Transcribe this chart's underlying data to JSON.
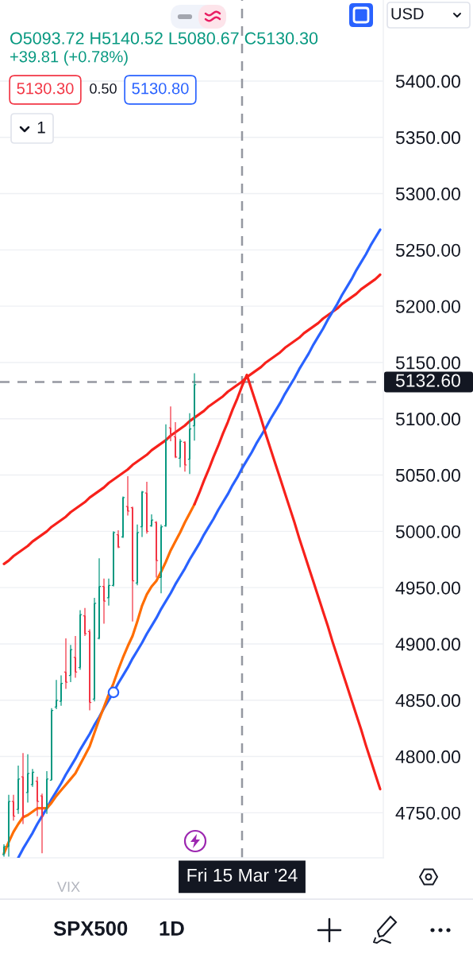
{
  "chart_data": {
    "type": "candlestick",
    "categories": [
      null,
      null,
      null,
      null,
      null,
      null,
      null,
      null,
      null,
      null,
      null,
      null,
      null,
      null,
      null,
      null,
      null,
      null,
      null,
      null,
      null,
      null,
      null,
      null,
      null,
      null,
      null,
      null,
      null,
      null,
      null,
      null,
      null,
      null,
      null,
      null,
      null,
      null,
      null,
      null,
      null,
      null,
      null,
      null,
      null,
      null,
      null,
      null,
      null,
      null,
      "Fri 15 Mar '24",
      null,
      null,
      null,
      null,
      null,
      null,
      null,
      null,
      null,
      null,
      null,
      null,
      null,
      null,
      null,
      null,
      null,
      null,
      null,
      null,
      null,
      null,
      null,
      null,
      null,
      null,
      null,
      null,
      null
    ],
    "ohlc": [
      [
        4713,
        4722,
        4711,
        4720
      ],
      [
        4720,
        4766,
        4711,
        4760
      ],
      [
        4760,
        4766,
        4743,
        4747
      ],
      [
        4753,
        4792,
        4749,
        4780
      ],
      [
        4782,
        4803,
        4740,
        4747
      ],
      [
        4768,
        4802,
        4759,
        4785
      ],
      [
        4775,
        4789,
        4773,
        4786
      ],
      [
        4778,
        4782,
        4747,
        4760
      ],
      [
        4765,
        4767,
        4714,
        4747
      ],
      [
        4754,
        4787,
        4749,
        4780
      ],
      [
        4779,
        4843,
        4779,
        4841
      ],
      [
        4844,
        4868,
        4842,
        4850
      ],
      [
        4849,
        4872,
        4845,
        4865
      ],
      [
        4875,
        4905,
        4860,
        4866
      ],
      [
        4872,
        4899,
        4866,
        4895
      ],
      [
        4888,
        4907,
        4870,
        4875
      ],
      [
        4879,
        4930,
        4877,
        4926
      ],
      [
        4925,
        4932,
        4907,
        4909
      ],
      [
        4911,
        4913,
        4841,
        4848
      ],
      [
        4851,
        4941,
        4849,
        4936
      ],
      [
        4905,
        4976,
        4904,
        4951
      ],
      [
        4951,
        4958,
        4918,
        4938
      ],
      [
        4941,
        4958,
        4934,
        4952
      ],
      [
        4952,
        5000,
        4951,
        4999
      ],
      [
        4997,
        5001,
        4985,
        4986
      ],
      [
        4995,
        5031,
        4994,
        5030
      ],
      [
        5022,
        5049,
        5014,
        5018
      ],
      [
        5021,
        5022,
        4920,
        4956
      ],
      [
        4954,
        5006,
        4952,
        4999
      ],
      [
        5004,
        5036,
        4995,
        5035
      ],
      [
        5034,
        5044,
        4998,
        5000
      ],
      [
        5005,
        5015,
        5004,
        5010
      ],
      [
        5008,
        5009,
        4959,
        4974
      ],
      [
        4959,
        5006,
        4945,
        5004
      ],
      [
        5005,
        5095,
        5004,
        5081
      ],
      [
        5092,
        5111,
        5080,
        5085
      ],
      [
        5084,
        5097,
        5065,
        5066
      ],
      [
        5065,
        5082,
        5057,
        5080
      ],
      [
        5079,
        5080,
        5053,
        5059
      ],
      [
        5064,
        5105,
        5051,
        5091
      ],
      [
        5093.72,
        5140.52,
        5080.67,
        5130.3
      ],
      null,
      null,
      null,
      null,
      null,
      null,
      null,
      null,
      null,
      null,
      null,
      null,
      null,
      null,
      null,
      null,
      null,
      null,
      null,
      null,
      null,
      null,
      null,
      null,
      null,
      null,
      null,
      null,
      null,
      null,
      null,
      null,
      null,
      null,
      null,
      null,
      null,
      null,
      null
    ],
    "colors": [
      "#089981",
      "#089981",
      "#f23645",
      "#089981",
      "#f23645",
      "#089981",
      "#089981",
      "#f23645",
      "#f23645",
      "#089981",
      "#089981",
      "#089981",
      "#089981",
      "#f23645",
      "#089981",
      "#f23645",
      "#089981",
      "#f23645",
      "#f23645",
      "#089981",
      "#089981",
      "#f23645",
      "#089981",
      "#089981",
      "#f23645",
      "#089981",
      "#f23645",
      "#f23645",
      "#089981",
      "#089981",
      "#f23645",
      "#089981",
      "#f23645",
      "#089981",
      "#089981",
      "#f23645",
      "#f23645",
      "#089981",
      "#f23645",
      "#089981",
      "#089981",
      null,
      null,
      null,
      null,
      null,
      null,
      null,
      null,
      null,
      null,
      null,
      null,
      null,
      null,
      null,
      null,
      null,
      null,
      null,
      null,
      null,
      null,
      null,
      null,
      null,
      null,
      null,
      null,
      null,
      null,
      null,
      null,
      null,
      null,
      null,
      null,
      null,
      null,
      null
    ],
    "series": [
      {
        "type": "line",
        "color": "#f7211b",
        "values": [
          4971,
          4974,
          4978,
          4981,
          4984,
          4987,
          4991,
          4994,
          4997,
          5000,
          5004,
          5007,
          5010,
          5013,
          5017,
          5020,
          5023,
          5026,
          5030,
          5033,
          5036,
          5039,
          5043,
          5046,
          5049,
          5052,
          5055,
          5059,
          5062,
          5065,
          5068,
          5072,
          5075,
          5078,
          5081,
          5085,
          5088,
          5091,
          5094,
          5098,
          5101,
          5104,
          5107,
          5111,
          5114,
          5117,
          5120,
          5124,
          5127,
          5130,
          5133,
          5137,
          5140,
          5143,
          5146,
          5150,
          5153,
          5156,
          5159,
          5163,
          5166,
          5169,
          5172,
          5176,
          5179,
          5182,
          5185,
          5189,
          5192,
          5195,
          5198,
          5202,
          5205,
          5208,
          5211,
          5215,
          5218,
          5221,
          5224,
          5228
        ]
      },
      {
        "type": "line",
        "color": "#2962ff",
        "values": [
          null,
          null,
          null,
          4710,
          4718,
          4725,
          4732,
          4740,
          4747,
          4754,
          4762,
          4769,
          4776,
          4784,
          4791,
          4798,
          4806,
          4813,
          4820,
          4828,
          4835,
          4843,
          4850,
          4857,
          4865,
          4872,
          4879,
          4887,
          4894,
          4901,
          4909,
          4916,
          4923,
          4931,
          4938,
          4945,
          4953,
          4960,
          4967,
          4975,
          4982,
          4989,
          4997,
          5004,
          5011,
          5019,
          5026,
          5033,
          5041,
          5048,
          5056,
          5063,
          5070,
          5078,
          5085,
          5092,
          5100,
          5107,
          5114,
          5122,
          5129,
          5136,
          5144,
          5151,
          5158,
          5166,
          5173,
          5180,
          5188,
          5195,
          5202,
          5210,
          5217,
          5224,
          5232,
          5239,
          5246,
          5254,
          5261,
          5268
        ]
      },
      {
        "type": "line",
        "color": "#ff6d00",
        "values": [
          4714,
          4724,
          4733,
          4740,
          4746,
          4748,
          4751,
          4754,
          4754,
          4754,
          4759,
          4765,
          4770,
          4775,
          4780,
          4785,
          4793,
          4801,
          4809,
          4821,
          4833,
          4844,
          4855,
          4865,
          4877,
          4888,
          4898,
          4907,
          4920,
          4934,
          4944,
          4951,
          4956,
          4964,
          4973,
          4983,
          4991,
          4999,
          5008,
          5016,
          5024,
          null,
          null,
          null,
          null,
          null,
          null,
          null,
          null,
          null,
          null,
          null,
          null,
          null,
          null,
          null,
          null,
          null,
          null,
          null,
          null,
          null,
          null,
          null,
          null,
          null,
          null,
          null,
          null,
          null,
          null,
          null,
          null,
          null,
          null,
          null,
          null,
          null,
          null,
          null
        ]
      },
      {
        "type": "line",
        "color": "#f7211b",
        "values": [
          null,
          null,
          null,
          null,
          null,
          null,
          null,
          null,
          null,
          null,
          null,
          null,
          null,
          null,
          null,
          null,
          null,
          null,
          null,
          null,
          null,
          null,
          null,
          null,
          null,
          null,
          null,
          null,
          null,
          null,
          null,
          null,
          null,
          null,
          null,
          null,
          null,
          null,
          null,
          null,
          5024,
          5034,
          5045,
          5055,
          5066,
          5076,
          5087,
          5097,
          5108,
          5118,
          5129,
          5139,
          5126,
          5113,
          5100,
          5086,
          5073,
          5060,
          5047,
          5034,
          5021,
          5008,
          4994,
          4981,
          4968,
          4955,
          4942,
          4929,
          4916,
          4902,
          4889,
          4876,
          4863,
          4850,
          4837,
          4824,
          4810,
          4797,
          4784,
          4771
        ]
      },
      {
        "type": "scatter",
        "color": "#2962ff",
        "marker": "circle",
        "values": [
          null,
          null,
          null,
          null,
          null,
          null,
          null,
          null,
          null,
          null,
          null,
          null,
          null,
          null,
          null,
          null,
          null,
          null,
          null,
          null,
          null,
          null,
          null,
          4857,
          null,
          null,
          null,
          null,
          null,
          null,
          null,
          null,
          null,
          null,
          null,
          null,
          null,
          null,
          null,
          null,
          null,
          null,
          null,
          null,
          null,
          null,
          null,
          null,
          null,
          null,
          null,
          null,
          null,
          null,
          null,
          null,
          null,
          null,
          null,
          null,
          null,
          null,
          null,
          null,
          null,
          null,
          null,
          null,
          null,
          null,
          null,
          null,
          null,
          null,
          null,
          null,
          null,
          null,
          null,
          null
        ]
      }
    ],
    "ylim": [
      4710,
      5472
    ],
    "yticks": [
      {
        "value": 4750,
        "label": "4750.00"
      },
      {
        "value": 4800,
        "label": "4800.00"
      },
      {
        "value": 4850,
        "label": "4850.00"
      },
      {
        "value": 4900,
        "label": "4900.00"
      },
      {
        "value": 4950,
        "label": "4950.00"
      },
      {
        "value": 5000,
        "label": "5000.00"
      },
      {
        "value": 5050,
        "label": "5050.00"
      },
      {
        "value": 5100,
        "label": "5100.00"
      },
      {
        "value": 5150,
        "label": "5150.00"
      },
      {
        "value": 5200,
        "label": "5200.00"
      },
      {
        "value": 5250,
        "label": "5250.00"
      },
      {
        "value": 5300,
        "label": "5300.00"
      },
      {
        "value": 5350,
        "label": "5350.00"
      },
      {
        "value": 5400,
        "label": "5400.00"
      }
    ],
    "grid": "y",
    "ref_lines": [
      {
        "axis": "y",
        "value": 5132.6,
        "label": "5132.60",
        "color": "#9598a1",
        "line_style": "dashed"
      },
      {
        "axis": "x",
        "value": "Fri 15 Mar '24",
        "color": "#9598a1",
        "line_style": "dashed"
      }
    ],
    "annotations": [
      "O5093.72 H5140.52 L5080.67 C5130.30",
      "+39.81 (+0.78%)",
      "5130.30",
      "0.50",
      "5130.80",
      "1",
      "USD",
      "VIX",
      "SPX500",
      "1D"
    ]
  }
}
